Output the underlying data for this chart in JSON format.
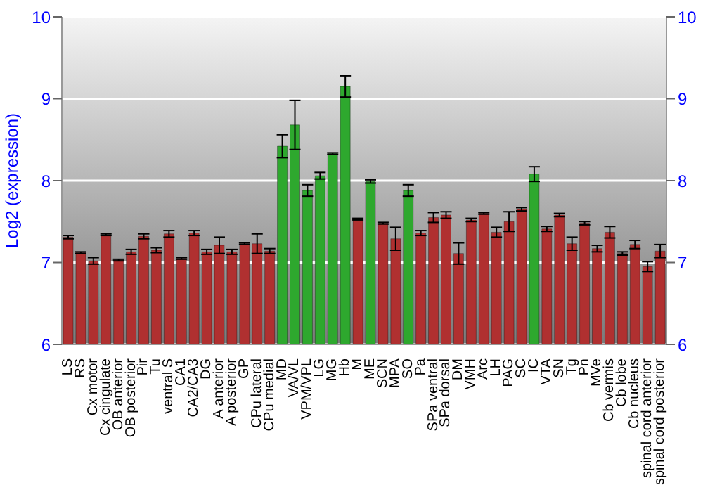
{
  "chart_data": {
    "type": "bar",
    "ylabel": "Log2 (expression)",
    "categories": [
      "LS",
      "RS",
      "Cx motor",
      "Cx cingulate",
      "OB anterior",
      "OB posterior",
      "Pir",
      "Tu",
      "ventral S",
      "CA1",
      "CA2/CA3",
      "DG",
      "A anterior",
      "A posterior",
      "GP",
      "CPu lateral",
      "CPu medial",
      "MD",
      "VA/VL",
      "VPM/VPL",
      "LG",
      "MG",
      "Hb",
      "M",
      "ME",
      "SCN",
      "MPA",
      "SO",
      "Pa",
      "SPa ventral",
      "SPa dorsal",
      "DM",
      "VMH",
      "Arc",
      "LH",
      "PAG",
      "SC",
      "IC",
      "VTA",
      "SN",
      "Tg",
      "Pn",
      "MVe",
      "Cb vermis",
      "Cb lobe",
      "Cb nucleus",
      "spinal cord anterior",
      "spinal cord posterior"
    ],
    "values": [
      7.31,
      7.12,
      7.02,
      7.34,
      7.03,
      7.13,
      7.32,
      7.15,
      7.35,
      7.05,
      7.36,
      7.13,
      7.21,
      7.13,
      7.23,
      7.23,
      7.14,
      8.42,
      8.68,
      7.88,
      8.06,
      8.33,
      9.15,
      7.53,
      7.99,
      7.48,
      7.29,
      7.88,
      7.36,
      7.55,
      7.58,
      7.11,
      7.52,
      7.6,
      7.37,
      7.5,
      7.65,
      8.08,
      7.41,
      7.58,
      7.23,
      7.48,
      7.17,
      7.37,
      7.11,
      7.22,
      6.95,
      7.14
    ],
    "errors": [
      0.02,
      0.01,
      0.04,
      0.01,
      0.01,
      0.03,
      0.03,
      0.03,
      0.04,
      0.01,
      0.03,
      0.03,
      0.1,
      0.03,
      0.01,
      0.12,
      0.03,
      0.14,
      0.3,
      0.07,
      0.04,
      0.01,
      0.13,
      0.01,
      0.02,
      0.01,
      0.14,
      0.07,
      0.03,
      0.06,
      0.04,
      0.13,
      0.02,
      0.01,
      0.06,
      0.12,
      0.02,
      0.09,
      0.03,
      0.02,
      0.08,
      0.02,
      0.04,
      0.07,
      0.02,
      0.05,
      0.06,
      0.08
    ],
    "colors": [
      "#b03030",
      "#b03030",
      "#b03030",
      "#b03030",
      "#b03030",
      "#b03030",
      "#b03030",
      "#b03030",
      "#b03030",
      "#b03030",
      "#b03030",
      "#b03030",
      "#b03030",
      "#b03030",
      "#b03030",
      "#b03030",
      "#b03030",
      "#2ea82e",
      "#2ea82e",
      "#2ea82e",
      "#2ea82e",
      "#2ea82e",
      "#2ea82e",
      "#b03030",
      "#2ea82e",
      "#b03030",
      "#b03030",
      "#2ea82e",
      "#b03030",
      "#b03030",
      "#b03030",
      "#b03030",
      "#b03030",
      "#b03030",
      "#b03030",
      "#b03030",
      "#b03030",
      "#2ea82e",
      "#b03030",
      "#b03030",
      "#b03030",
      "#b03030",
      "#b03030",
      "#b03030",
      "#b03030",
      "#b03030",
      "#b03030",
      "#b03030"
    ],
    "ylim": [
      6,
      10
    ],
    "yticks": [
      6,
      7,
      8,
      9,
      10
    ],
    "y2lim": [
      6,
      10
    ],
    "y2ticks": [
      6,
      7,
      8,
      9,
      10
    ],
    "grid": "y"
  }
}
